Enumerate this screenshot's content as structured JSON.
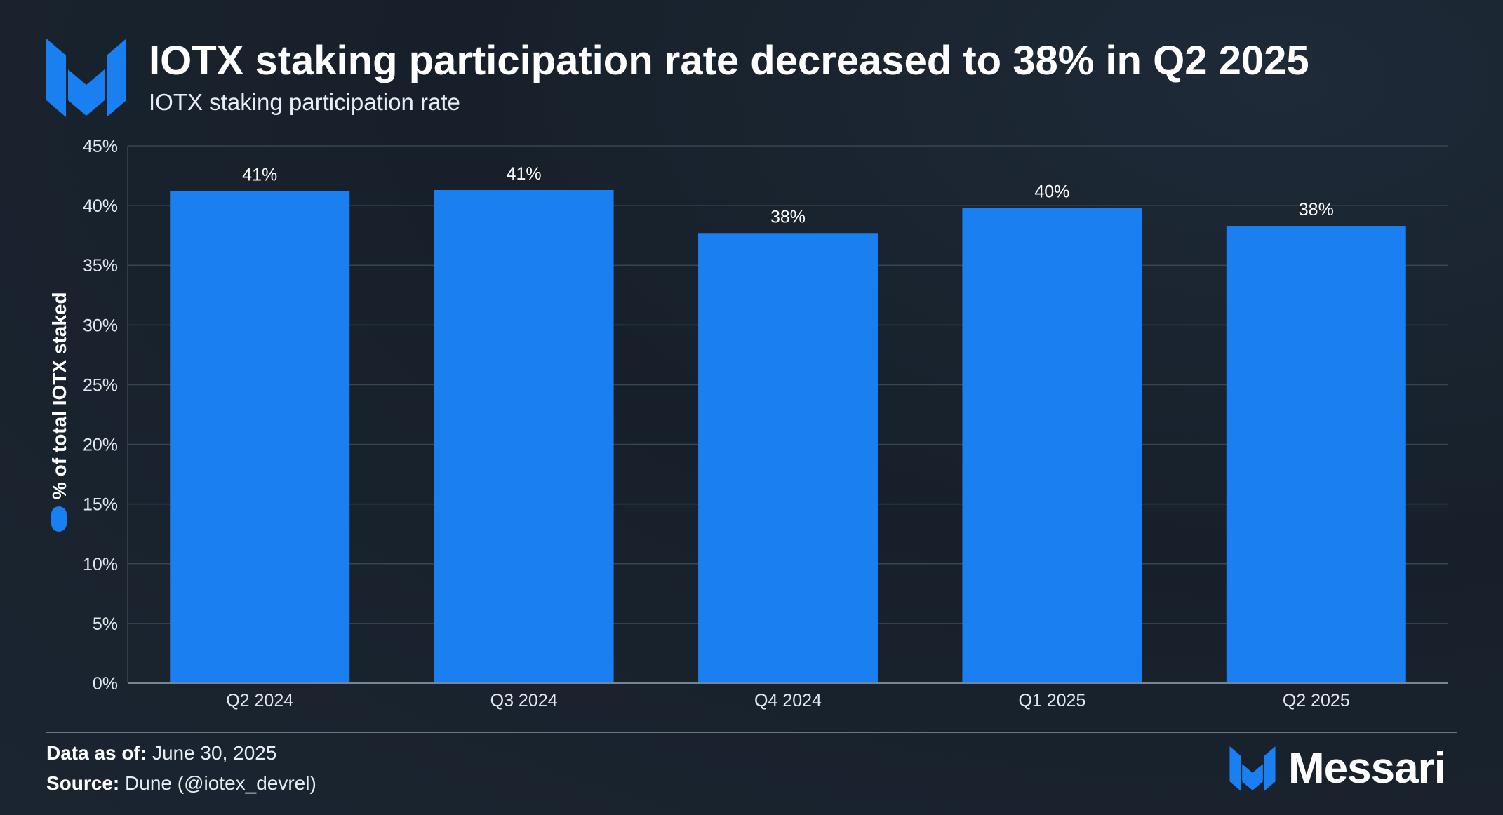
{
  "header": {
    "title": "IOTX staking participation rate decreased to 38% in Q2 2025",
    "subtitle": "IOTX staking participation rate"
  },
  "colors": {
    "bar": "#1a7ff0",
    "accent": "#1a7ff0",
    "grid": "#3a4452",
    "axis": "#7a8593"
  },
  "chart_data": {
    "type": "bar",
    "categories": [
      "Q2 2024",
      "Q3 2024",
      "Q4 2024",
      "Q1 2025",
      "Q2 2025"
    ],
    "values": [
      41.2,
      41.3,
      37.7,
      39.8,
      38.3
    ],
    "data_labels": [
      "41%",
      "41%",
      "38%",
      "40%",
      "38%"
    ],
    "ylabel": "% of total IOTX staked",
    "ylim": [
      0,
      45
    ],
    "yticks": [
      0,
      5,
      10,
      15,
      20,
      25,
      30,
      35,
      40,
      45
    ],
    "ytick_labels": [
      "0%",
      "5%",
      "10%",
      "15%",
      "20%",
      "25%",
      "30%",
      "35%",
      "40%",
      "45%"
    ],
    "grid": true,
    "legend": "none"
  },
  "footer": {
    "data_as_of_label": "Data as of:",
    "data_as_of_value": "June 30, 2025",
    "source_label": "Source:",
    "source_value": "Dune (@iotex_devrel)",
    "brand": "Messari"
  },
  "icons": {
    "logo": "messari-logo-icon",
    "ylabel_swatch": "legend-swatch-icon"
  }
}
